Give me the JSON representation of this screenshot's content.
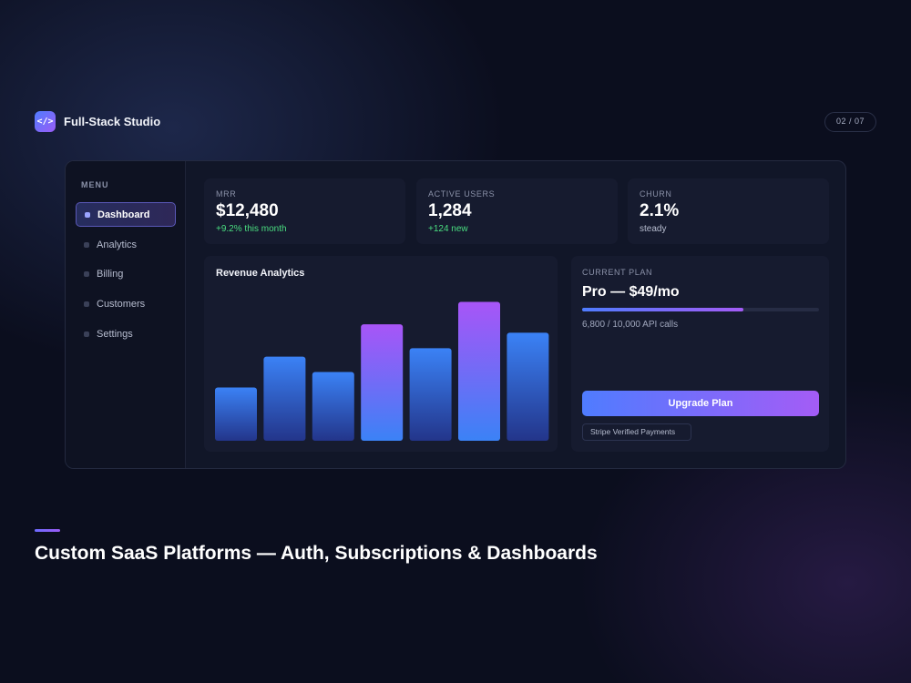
{
  "brand": {
    "logo_glyph": "</>",
    "name": "Full-Stack Studio"
  },
  "page_counter": "02 / 07",
  "sidebar": {
    "title": "MENU",
    "items": [
      {
        "label": "Dashboard",
        "active": true
      },
      {
        "label": "Analytics",
        "active": false
      },
      {
        "label": "Billing",
        "active": false
      },
      {
        "label": "Customers",
        "active": false
      },
      {
        "label": "Settings",
        "active": false
      }
    ]
  },
  "stats": [
    {
      "label": "MRR",
      "value": "$12,480",
      "sub": "+9.2% this month",
      "sub_color": "#4ade80"
    },
    {
      "label": "ACTIVE USERS",
      "value": "1,284",
      "sub": "+124 new",
      "sub_color": "#4ade80"
    },
    {
      "label": "CHURN",
      "value": "2.1%",
      "sub": "steady",
      "sub_color": "#b7bdd0"
    }
  ],
  "chart": {
    "title": "Revenue Analytics"
  },
  "chart_data": {
    "type": "bar",
    "title": "Revenue Analytics",
    "values": [
      38,
      60,
      49,
      83,
      66,
      99,
      77
    ],
    "highlighted": [
      3,
      5
    ],
    "ylim": [
      0,
      100
    ],
    "grid": false,
    "colors": {
      "default_top": "#3b82f6",
      "default_bottom": "#23358a",
      "highlight_top": "#a855f7",
      "highlight_bottom": "#3b82f6"
    }
  },
  "plan": {
    "label": "CURRENT PLAN",
    "name": "Pro — $49/mo",
    "usage_text": "6,800 / 10,000 API calls",
    "usage_fraction": 0.68,
    "upgrade_label": "Upgrade Plan",
    "badge": "Stripe Verified Payments"
  },
  "footer": {
    "headline": "Custom SaaS Platforms — Auth, Subscriptions & Dashboards"
  }
}
